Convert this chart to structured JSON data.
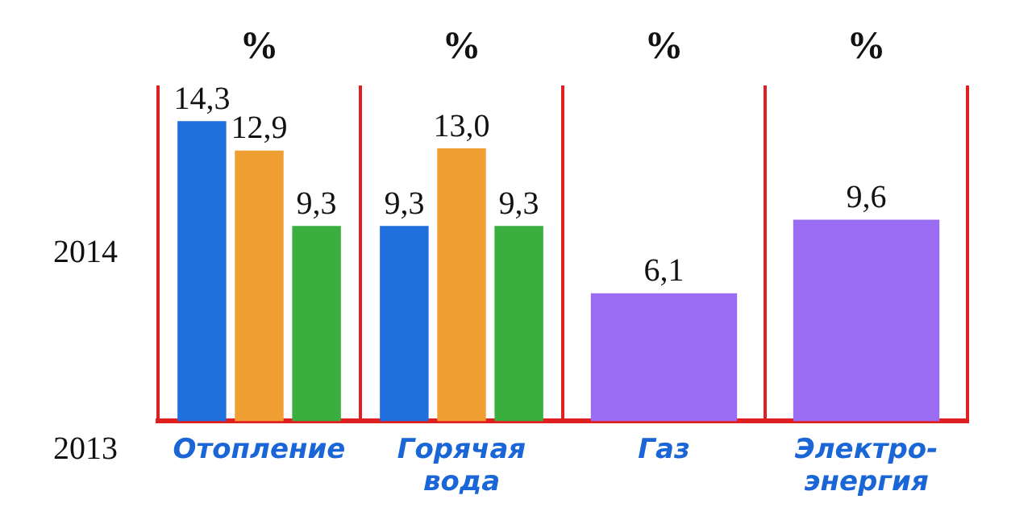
{
  "chart_data": {
    "type": "bar",
    "categories": [
      "Отопление",
      "Горячая вода",
      "Газ",
      "Электро-энергия"
    ],
    "series": [
      {
        "color": "#1f6fdc",
        "values": [
          14.3,
          9.3,
          null,
          null
        ],
        "value_labels": [
          "14,3",
          "9,3",
          null,
          null
        ]
      },
      {
        "color": "#f0a032",
        "values": [
          12.9,
          13.0,
          null,
          null
        ],
        "value_labels": [
          "12,9",
          "13,0",
          null,
          null
        ]
      },
      {
        "color": "#3aae3e",
        "values": [
          9.3,
          9.3,
          null,
          null
        ],
        "value_labels": [
          "9,3",
          "9,3",
          null,
          null
        ]
      },
      {
        "color": "#9a6cf2",
        "values": [
          null,
          null,
          6.1,
          9.6
        ],
        "value_labels": [
          null,
          null,
          "6,1",
          "9,6"
        ]
      }
    ],
    "annotations": [
      "2014",
      "2013",
      "%",
      "%",
      "%",
      "%"
    ],
    "grid": "x",
    "legend": false
  }
}
